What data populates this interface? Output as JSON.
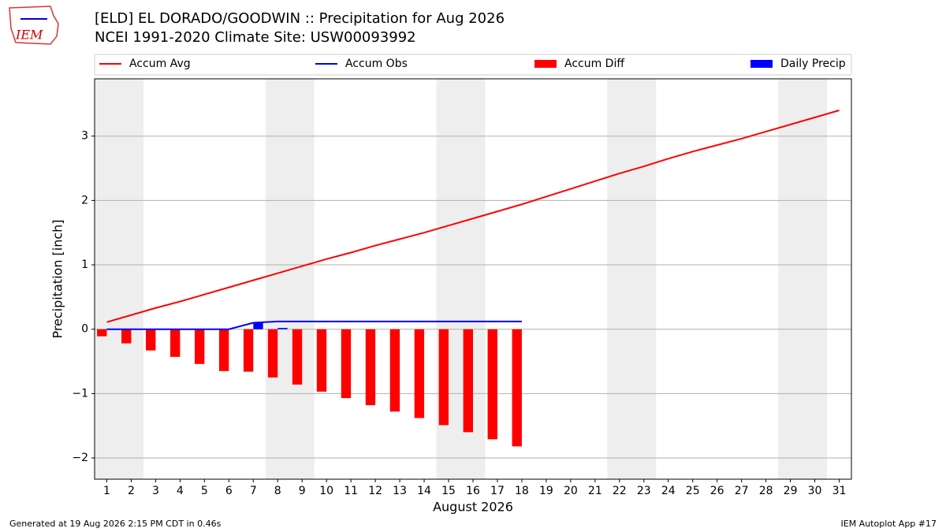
{
  "chart_data": {
    "type": "bar",
    "logo_text": "IEM",
    "title": "[ELD] EL DORADO/GOODWIN :: Precipitation for Aug 2026",
    "subtitle": "NCEI 1991-2020 Climate Site: USW00093992",
    "xlabel": "August 2026",
    "ylabel": "Precipitation [inch]",
    "footer_left": "Generated at 19 Aug 2026 2:15 PM CDT in 0.46s",
    "footer_right": "IEM Autoplot App #17",
    "x": [
      1,
      2,
      3,
      4,
      5,
      6,
      7,
      8,
      9,
      10,
      11,
      12,
      13,
      14,
      15,
      16,
      17,
      18,
      19,
      20,
      21,
      22,
      23,
      24,
      25,
      26,
      27,
      28,
      29,
      30,
      31
    ],
    "shaded_days": [
      1,
      2,
      8,
      9,
      15,
      16,
      22,
      23,
      29,
      30
    ],
    "xlim": [
      0.5,
      31.5
    ],
    "xticks": [
      1,
      2,
      3,
      4,
      5,
      6,
      7,
      8,
      9,
      10,
      11,
      12,
      13,
      14,
      15,
      16,
      17,
      18,
      19,
      20,
      21,
      22,
      23,
      24,
      25,
      26,
      27,
      28,
      29,
      30,
      31
    ],
    "ylim": [
      -2.33,
      3.89
    ],
    "yticks": [
      {
        "value": -2,
        "label": "−2"
      },
      {
        "value": -1,
        "label": "−1"
      },
      0,
      1,
      2,
      3
    ],
    "grid": true,
    "series": [
      {
        "name": "Accum Avg",
        "kind": "line",
        "color": "#ff0000",
        "values": [
          0.11,
          0.22,
          0.33,
          0.43,
          0.54,
          0.65,
          0.76,
          0.87,
          0.98,
          1.09,
          1.19,
          1.3,
          1.4,
          1.5,
          1.61,
          1.72,
          1.83,
          1.94,
          2.06,
          2.18,
          2.3,
          2.42,
          2.53,
          2.65,
          2.76,
          2.86,
          2.96,
          3.07,
          3.18,
          3.29,
          3.4
        ]
      },
      {
        "name": "Accum Obs",
        "kind": "line",
        "color": "#0000ff",
        "values": [
          0,
          0,
          0,
          0,
          0,
          0,
          0.1,
          0.12,
          0.12,
          0.12,
          0.12,
          0.12,
          0.12,
          0.12,
          0.12,
          0.12,
          0.12,
          0.12,
          null,
          null,
          null,
          null,
          null,
          null,
          null,
          null,
          null,
          null,
          null,
          null,
          null
        ]
      },
      {
        "name": "Accum Diff",
        "kind": "bar",
        "offset": -0.2,
        "color": "#ff0000",
        "values": [
          -0.11,
          -0.22,
          -0.33,
          -0.43,
          -0.54,
          -0.65,
          -0.66,
          -0.75,
          -0.86,
          -0.97,
          -1.07,
          -1.18,
          -1.28,
          -1.38,
          -1.49,
          -1.6,
          -1.71,
          -1.82,
          null,
          null,
          null,
          null,
          null,
          null,
          null,
          null,
          null,
          null,
          null,
          null,
          null
        ]
      },
      {
        "name": "Daily Precip",
        "kind": "bar",
        "offset": 0.2,
        "color": "#0000ff",
        "values": [
          0,
          0,
          0,
          0,
          0,
          0,
          0.1,
          0.02,
          0,
          0,
          0,
          0,
          0,
          0,
          0,
          0,
          0,
          0,
          null,
          null,
          null,
          null,
          null,
          null,
          null,
          null,
          null,
          null,
          null,
          null,
          null
        ]
      }
    ]
  }
}
